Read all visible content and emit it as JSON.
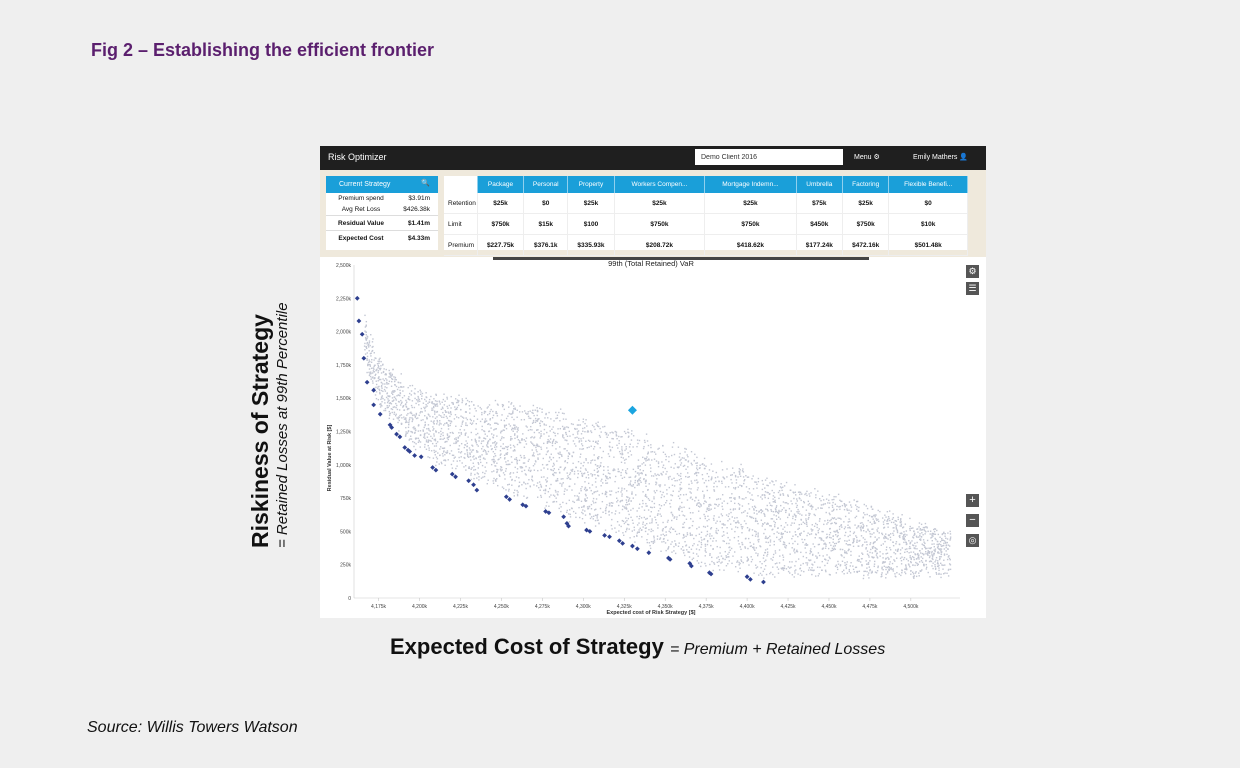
{
  "figure": {
    "title": "Fig 2 – Establishing the efficient frontier",
    "source": "Source: Willis Towers Watson"
  },
  "outer_axes": {
    "y_main": "Riskiness of Strategy",
    "y_sub": "= Retained Losses at 99th Percentile",
    "x_main": "Expected Cost of Strategy",
    "x_sub": "= Premium + Retained Losses"
  },
  "app": {
    "title": "Risk Optimizer",
    "client_value": "Demo Client 2016",
    "menu_label": "Menu",
    "user_name": "Emily Mathers",
    "current_strategy": {
      "header": "Current Strategy",
      "rows": [
        {
          "label": "Premium spend",
          "value": "$3.91m"
        },
        {
          "label": "Avg Ret Loss",
          "value": "$426.38k"
        },
        {
          "label": "Residual Value",
          "value": "$1.41m"
        },
        {
          "label": "Expected Cost",
          "value": "$4.33m"
        }
      ]
    },
    "coverage": {
      "columns": [
        "Package",
        "Personal",
        "Property",
        "Workers Compen...",
        "Mortgage Indemn...",
        "Umbrella",
        "Factoring",
        "Flexible Benefi..."
      ],
      "rows": [
        {
          "label": "Retention",
          "values": [
            "$25k",
            "$0",
            "$25k",
            "$25k",
            "$25k",
            "$75k",
            "$25k",
            "$0"
          ]
        },
        {
          "label": "Limit",
          "values": [
            "$750k",
            "$15k",
            "$100",
            "$750k",
            "$750k",
            "$450k",
            "$750k",
            "$10k"
          ]
        },
        {
          "label": "Premium",
          "values": [
            "$227.75k",
            "$376.1k",
            "$335.93k",
            "$208.72k",
            "$418.62k",
            "$177.24k",
            "$472.16k",
            "$501.48k"
          ]
        }
      ]
    }
  },
  "chart_data": {
    "type": "scatter",
    "title": "99th (Total Retained) VaR",
    "xlabel": "Expected cost of Risk Strategy [$]",
    "ylabel": "Residual Value at Risk [$]",
    "xlim": [
      4160,
      4530
    ],
    "ylim": [
      0,
      2500
    ],
    "x_ticks": [
      "4,175k",
      "4,200k",
      "4,225k",
      "4,250k",
      "4,275k",
      "4,300k",
      "4,325k",
      "4,350k",
      "4,375k",
      "4,400k",
      "4,425k",
      "4,450k",
      "4,475k",
      "4,500k"
    ],
    "x_tick_values": [
      4175,
      4200,
      4225,
      4250,
      4275,
      4300,
      4325,
      4350,
      4375,
      4400,
      4425,
      4450,
      4475,
      4500
    ],
    "y_ticks": [
      "0",
      "250k",
      "500k",
      "750k",
      "1,000k",
      "1,250k",
      "1,500k",
      "1,750k",
      "2,000k",
      "2,250k",
      "2,500k"
    ],
    "y_tick_values": [
      0,
      250,
      500,
      750,
      1000,
      1250,
      1500,
      1750,
      2000,
      2250,
      2500
    ],
    "colors": {
      "cloud": "#c3c7d3",
      "frontier": "#2e3f8f",
      "current": "#1ba5e0"
    },
    "series": [
      {
        "name": "",
        "role": "frontier",
        "points": [
          [
            4162,
            2250
          ],
          [
            4163,
            2080
          ],
          [
            4165,
            1980
          ],
          [
            4166,
            1800
          ],
          [
            4168,
            1620
          ],
          [
            4172,
            1560
          ],
          [
            4172,
            1450
          ],
          [
            4176,
            1380
          ],
          [
            4182,
            1300
          ],
          [
            4183,
            1280
          ],
          [
            4186,
            1230
          ],
          [
            4188,
            1210
          ],
          [
            4191,
            1130
          ],
          [
            4193,
            1110
          ],
          [
            4194,
            1100
          ],
          [
            4197,
            1070
          ],
          [
            4201,
            1060
          ],
          [
            4208,
            980
          ],
          [
            4210,
            960
          ],
          [
            4220,
            930
          ],
          [
            4222,
            910
          ],
          [
            4230,
            880
          ],
          [
            4233,
            850
          ],
          [
            4235,
            810
          ],
          [
            4253,
            760
          ],
          [
            4255,
            740
          ],
          [
            4263,
            700
          ],
          [
            4265,
            690
          ],
          [
            4277,
            650
          ],
          [
            4279,
            640
          ],
          [
            4288,
            610
          ],
          [
            4290,
            560
          ],
          [
            4291,
            540
          ],
          [
            4302,
            510
          ],
          [
            4304,
            500
          ],
          [
            4313,
            470
          ],
          [
            4316,
            460
          ],
          [
            4322,
            430
          ],
          [
            4324,
            410
          ],
          [
            4330,
            390
          ],
          [
            4333,
            370
          ],
          [
            4340,
            340
          ],
          [
            4352,
            300
          ],
          [
            4353,
            290
          ],
          [
            4365,
            260
          ],
          [
            4366,
            240
          ],
          [
            4377,
            190
          ],
          [
            4378,
            180
          ],
          [
            4400,
            160
          ],
          [
            4402,
            140
          ],
          [
            4410,
            120
          ]
        ],
        "note": ""
      },
      {
        "name": "",
        "role": "current",
        "points": [
          [
            4330,
            1410
          ]
        ]
      }
    ]
  }
}
